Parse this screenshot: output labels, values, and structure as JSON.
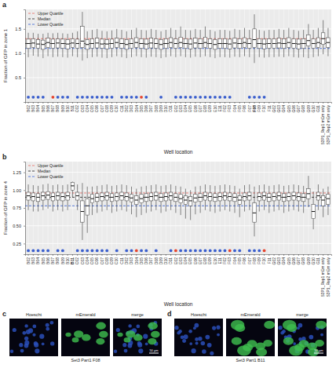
{
  "chart_data": [
    {
      "type": "box",
      "panel_label": "a",
      "ylabel": "Fraction of GFP in zone 1",
      "xlabel": "Well location",
      "categories": [
        "B02",
        "B03",
        "B04",
        "B05",
        "B06",
        "B07",
        "B08",
        "B09",
        "B10",
        "B11",
        "C02",
        "C03",
        "C04",
        "C05",
        "C06",
        "C07",
        "C08",
        "C09",
        "C10",
        "C11",
        "D02",
        "D03",
        "D04",
        "D05",
        "D06",
        "D07",
        "D08",
        "D09",
        "D10",
        "D11",
        "E02",
        "E03",
        "E04",
        "E05",
        "E06",
        "E07",
        "E08",
        "E09",
        "E10",
        "E11",
        "F02",
        "F03",
        "F04",
        "F05",
        "F06",
        "F07",
        "F08",
        "F09",
        "F10",
        "F11",
        "G02",
        "G03",
        "G04",
        "G05",
        "G06",
        "G07",
        "G08",
        "G09",
        "G10",
        "G11",
        "S3P1_Rep1 mEm only",
        "S3P1_Rep2 mEm only"
      ],
      "highlight": "F08",
      "whisker_low": [
        0.92,
        0.95,
        0.93,
        0.9,
        0.94,
        0.92,
        0.93,
        0.92,
        0.91,
        0.94,
        0.92,
        0.85,
        0.9,
        0.92,
        0.93,
        0.91,
        0.9,
        0.92,
        0.94,
        0.92,
        0.9,
        0.92,
        0.94,
        0.92,
        0.91,
        0.93,
        0.92,
        0.9,
        0.92,
        0.94,
        0.92,
        0.94,
        0.92,
        0.91,
        0.93,
        0.92,
        0.94,
        0.92,
        0.9,
        0.92,
        0.92,
        0.91,
        0.93,
        0.92,
        0.94,
        0.92,
        0.8,
        0.92,
        0.91,
        0.92,
        0.92,
        0.93,
        0.92,
        0.94,
        0.92,
        0.91,
        0.92,
        0.9,
        0.92,
        0.94,
        0.98,
        0.94
      ],
      "q1": [
        1.1,
        1.12,
        1.1,
        1.08,
        1.12,
        1.1,
        1.11,
        1.1,
        1.09,
        1.12,
        1.1,
        1.12,
        1.08,
        1.1,
        1.11,
        1.1,
        1.09,
        1.1,
        1.12,
        1.1,
        1.08,
        1.1,
        1.12,
        1.1,
        1.09,
        1.11,
        1.1,
        1.08,
        1.1,
        1.12,
        1.1,
        1.12,
        1.1,
        1.09,
        1.11,
        1.1,
        1.12,
        1.1,
        1.08,
        1.1,
        1.1,
        1.09,
        1.11,
        1.1,
        1.12,
        1.1,
        1.12,
        1.1,
        1.09,
        1.1,
        1.1,
        1.11,
        1.1,
        1.12,
        1.1,
        1.09,
        1.1,
        1.15,
        1.1,
        1.12,
        1.18,
        1.12
      ],
      "median": [
        1.2,
        1.21,
        1.19,
        1.18,
        1.22,
        1.2,
        1.21,
        1.2,
        1.19,
        1.21,
        1.2,
        1.25,
        1.18,
        1.2,
        1.21,
        1.19,
        1.19,
        1.2,
        1.22,
        1.2,
        1.18,
        1.2,
        1.22,
        1.2,
        1.19,
        1.21,
        1.2,
        1.18,
        1.2,
        1.22,
        1.2,
        1.22,
        1.2,
        1.19,
        1.21,
        1.2,
        1.22,
        1.2,
        1.18,
        1.2,
        1.2,
        1.19,
        1.21,
        1.2,
        1.22,
        1.2,
        1.28,
        1.2,
        1.19,
        1.2,
        1.2,
        1.21,
        1.2,
        1.22,
        1.2,
        1.19,
        1.2,
        1.26,
        1.2,
        1.22,
        1.3,
        1.22
      ],
      "q3": [
        1.29,
        1.3,
        1.28,
        1.27,
        1.31,
        1.29,
        1.3,
        1.29,
        1.28,
        1.3,
        1.29,
        1.55,
        1.28,
        1.3,
        1.31,
        1.29,
        1.28,
        1.29,
        1.31,
        1.3,
        1.28,
        1.3,
        1.32,
        1.3,
        1.29,
        1.31,
        1.3,
        1.28,
        1.3,
        1.32,
        1.3,
        1.33,
        1.3,
        1.29,
        1.31,
        1.3,
        1.33,
        1.3,
        1.28,
        1.3,
        1.3,
        1.29,
        1.31,
        1.3,
        1.32,
        1.3,
        1.5,
        1.3,
        1.29,
        1.3,
        1.3,
        1.31,
        1.3,
        1.32,
        1.3,
        1.29,
        1.3,
        1.38,
        1.3,
        1.32,
        1.42,
        1.32
      ],
      "whisker_high": [
        1.42,
        1.42,
        1.4,
        1.4,
        1.42,
        1.41,
        1.42,
        1.41,
        1.4,
        1.42,
        1.45,
        1.85,
        1.45,
        1.48,
        1.5,
        1.46,
        1.45,
        1.47,
        1.5,
        1.48,
        1.45,
        1.48,
        1.52,
        1.48,
        1.47,
        1.5,
        1.48,
        1.45,
        1.48,
        1.52,
        1.48,
        1.55,
        1.48,
        1.47,
        1.5,
        1.48,
        1.55,
        1.48,
        1.45,
        1.48,
        1.48,
        1.46,
        1.5,
        1.48,
        1.52,
        1.48,
        1.8,
        1.48,
        1.46,
        1.48,
        1.48,
        1.5,
        1.48,
        1.52,
        1.48,
        1.46,
        1.48,
        1.6,
        1.48,
        1.52,
        1.68,
        1.52
      ],
      "marker_value": 0.1,
      "markers": [
        "#3b5fcd",
        "#3b5fcd",
        "#3b5fcd",
        "#3b5fcd",
        null,
        "#e5452f",
        "#3b5fcd",
        "#3b5fcd",
        "#3b5fcd",
        null,
        "#3b5fcd",
        "#3b5fcd",
        "#3b5fcd",
        "#3b5fcd",
        "#3b5fcd",
        "#3b5fcd",
        "#3b5fcd",
        "#3b5fcd",
        null,
        "#3b5fcd",
        "#3b5fcd",
        "#3b5fcd",
        "#3b5fcd",
        "#e5452f",
        "#3b5fcd",
        null,
        null,
        "#3b5fcd",
        null,
        null,
        "#3b5fcd",
        "#3b5fcd",
        "#3b5fcd",
        "#3b5fcd",
        "#3b5fcd",
        "#3b5fcd",
        "#3b5fcd",
        "#3b5fcd",
        "#3b5fcd",
        "#3b5fcd",
        "#3b5fcd",
        "#3b5fcd",
        null,
        null,
        null,
        "#3b5fcd",
        "#3b5fcd",
        "#3b5fcd",
        "#3b5fcd",
        null,
        null,
        null,
        null,
        null,
        null,
        null,
        null,
        null,
        null,
        null,
        null,
        null
      ],
      "reference_lines": [
        {
          "name": "Upper Quartile",
          "value": 1.3,
          "color": "#e8766d",
          "line_style": "dashed"
        },
        {
          "name": "Median",
          "value": 1.2,
          "color": "#333333",
          "line_style": "dashed"
        },
        {
          "name": "Lower Quartile",
          "value": 1.1,
          "color": "#4a6fd8",
          "line_style": "dashed"
        }
      ],
      "legend": "top-left",
      "grid": true,
      "ylim": [
        0,
        1.9
      ],
      "yticks": [
        0.5,
        {
          "value": 1,
          "label": "1.0"
        },
        1.5
      ]
    },
    {
      "type": "box",
      "panel_label": "b",
      "ylabel": "Fraction of GFP in zone 4",
      "xlabel": "Well location",
      "categories": [
        "B02",
        "B03",
        "B04",
        "B05",
        "B06",
        "B07",
        "B08",
        "B09",
        "B10",
        "B11",
        "C02",
        "C03",
        "C04",
        "C05",
        "C06",
        "C07",
        "C08",
        "C09",
        "C10",
        "C11",
        "D02",
        "D03",
        "D04",
        "D05",
        "D06",
        "D07",
        "D08",
        "D09",
        "D10",
        "D11",
        "E02",
        "E03",
        "E04",
        "E05",
        "E06",
        "E07",
        "E08",
        "E09",
        "E10",
        "E11",
        "F02",
        "F03",
        "F04",
        "F05",
        "F06",
        "F07",
        "F08",
        "F09",
        "F10",
        "F11",
        "G02",
        "G03",
        "G04",
        "G05",
        "G06",
        "G07",
        "G08",
        "G09",
        "G10",
        "G11",
        "S3P1_Rep1 mEm only",
        "S3P1_Rep2 mEm only"
      ],
      "highlight": "B11",
      "whisker_low": [
        0.72,
        0.7,
        0.7,
        0.72,
        0.74,
        0.7,
        0.72,
        0.7,
        0.72,
        0.9,
        0.72,
        0.3,
        0.4,
        0.65,
        0.68,
        0.7,
        0.72,
        0.68,
        0.7,
        0.72,
        0.7,
        0.66,
        0.62,
        0.65,
        0.68,
        0.7,
        0.72,
        0.68,
        0.7,
        0.72,
        0.68,
        0.65,
        0.6,
        0.58,
        0.66,
        0.68,
        0.72,
        0.7,
        0.68,
        0.7,
        0.72,
        0.7,
        0.68,
        0.62,
        0.7,
        0.72,
        0.35,
        0.7,
        0.72,
        0.68,
        0.7,
        0.72,
        0.68,
        0.7,
        0.72,
        0.7,
        0.68,
        0.76,
        0.45,
        0.72,
        0.62,
        0.65
      ],
      "q1": [
        0.86,
        0.85,
        0.84,
        0.86,
        0.87,
        0.85,
        0.86,
        0.85,
        0.86,
        1.0,
        0.86,
        0.55,
        0.65,
        0.82,
        0.84,
        0.85,
        0.86,
        0.84,
        0.85,
        0.86,
        0.85,
        0.83,
        0.8,
        0.82,
        0.84,
        0.85,
        0.86,
        0.84,
        0.85,
        0.86,
        0.84,
        0.82,
        0.8,
        0.78,
        0.83,
        0.84,
        0.86,
        0.85,
        0.84,
        0.85,
        0.86,
        0.85,
        0.84,
        0.8,
        0.85,
        0.86,
        0.55,
        0.85,
        0.86,
        0.84,
        0.85,
        0.86,
        0.84,
        0.85,
        0.86,
        0.85,
        0.84,
        0.88,
        0.6,
        0.86,
        0.78,
        0.8
      ],
      "median": [
        0.92,
        0.91,
        0.9,
        0.92,
        0.93,
        0.91,
        0.92,
        0.91,
        0.92,
        1.06,
        0.92,
        0.7,
        0.78,
        0.88,
        0.9,
        0.91,
        0.92,
        0.9,
        0.91,
        0.92,
        0.91,
        0.89,
        0.86,
        0.88,
        0.9,
        0.91,
        0.92,
        0.9,
        0.91,
        0.92,
        0.9,
        0.88,
        0.86,
        0.85,
        0.89,
        0.9,
        0.92,
        0.91,
        0.9,
        0.91,
        0.92,
        0.91,
        0.9,
        0.86,
        0.91,
        0.92,
        0.68,
        0.91,
        0.92,
        0.9,
        0.91,
        0.92,
        0.9,
        0.91,
        0.92,
        0.91,
        0.9,
        0.95,
        0.7,
        0.92,
        0.86,
        0.88
      ],
      "q3": [
        0.97,
        0.96,
        0.95,
        0.97,
        0.98,
        0.96,
        0.97,
        0.96,
        0.97,
        1.11,
        0.97,
        0.85,
        0.88,
        0.94,
        0.95,
        0.96,
        0.97,
        0.95,
        0.96,
        0.97,
        0.96,
        0.94,
        0.92,
        0.94,
        0.95,
        0.96,
        0.97,
        0.95,
        0.96,
        0.97,
        0.95,
        0.94,
        0.92,
        0.91,
        0.94,
        0.95,
        0.97,
        0.96,
        0.95,
        0.96,
        0.97,
        0.96,
        0.95,
        0.92,
        0.96,
        0.97,
        0.82,
        0.96,
        0.97,
        0.95,
        0.96,
        0.97,
        0.95,
        0.96,
        0.97,
        0.96,
        0.95,
        1.02,
        0.8,
        0.97,
        0.92,
        0.94
      ],
      "whisker_high": [
        1.08,
        1.07,
        1.06,
        1.08,
        1.09,
        1.07,
        1.08,
        1.07,
        1.08,
        1.12,
        1.08,
        1.1,
        1.05,
        1.05,
        1.06,
        1.07,
        1.08,
        1.06,
        1.07,
        1.08,
        1.07,
        1.05,
        1.02,
        1.05,
        1.06,
        1.07,
        1.08,
        1.06,
        1.07,
        1.08,
        1.06,
        1.05,
        1.02,
        1.0,
        1.05,
        1.06,
        1.08,
        1.07,
        1.06,
        1.07,
        1.08,
        1.07,
        1.06,
        1.02,
        1.07,
        1.08,
        1.05,
        1.07,
        1.08,
        1.06,
        1.07,
        1.08,
        1.06,
        1.07,
        1.08,
        1.07,
        1.06,
        1.2,
        0.98,
        1.08,
        1.02,
        1.05
      ],
      "marker_value": 0.15,
      "markers": [
        "#3b5fcd",
        "#3b5fcd",
        "#3b5fcd",
        "#3b5fcd",
        "#3b5fcd",
        null,
        "#3b5fcd",
        "#3b5fcd",
        null,
        null,
        "#3b5fcd",
        "#3b5fcd",
        "#3b5fcd",
        "#3b5fcd",
        "#3b5fcd",
        "#3b5fcd",
        "#3b5fcd",
        null,
        "#3b5fcd",
        null,
        "#3b5fcd",
        "#3b5fcd",
        "#e5452f",
        "#3b5fcd",
        "#3b5fcd",
        null,
        "#3b5fcd",
        null,
        null,
        "#3b5fcd",
        "#e5452f",
        "#3b5fcd",
        "#3b5fcd",
        "#3b5fcd",
        "#3b5fcd",
        "#3b5fcd",
        "#3b5fcd",
        "#3b5fcd",
        "#3b5fcd",
        "#3b5fcd",
        "#3b5fcd",
        "#e5452f",
        "#3b5fcd",
        "#3b5fcd",
        null,
        "#3b5fcd",
        "#3b5fcd",
        "#3b5fcd",
        "#e5452f",
        null,
        null,
        null,
        null,
        null,
        null,
        null,
        null,
        null,
        null,
        null,
        null,
        null
      ],
      "reference_lines": [
        {
          "name": "Upper Quartile",
          "value": 0.96,
          "color": "#e8766d",
          "line_style": "dashed"
        },
        {
          "name": "Median",
          "value": 0.9,
          "color": "#333333",
          "line_style": "dashed"
        },
        {
          "name": "Lower Quartile",
          "value": 0.78,
          "color": "#4a6fd8",
          "line_style": "dashed"
        }
      ],
      "legend": "top-left",
      "grid": true,
      "ylim": [
        0.1,
        1.4
      ],
      "yticks": [
        0.25,
        {
          "value": 0.5,
          "label": "0.50"
        },
        0.75,
        {
          "value": 1,
          "label": "1.00"
        },
        1.25
      ]
    }
  ],
  "images": [
    {
      "panel_label": "c",
      "channels": [
        "Hoescht",
        "mEmerald",
        "merge"
      ],
      "caption": "Set3 Part1 F08",
      "scale_bar": "50 µm"
    },
    {
      "panel_label": "d",
      "channels": [
        "Hoescht",
        "mEmerald",
        "merge"
      ],
      "caption": "Set3 Part1 B11",
      "scale_bar": "50 µm"
    }
  ]
}
